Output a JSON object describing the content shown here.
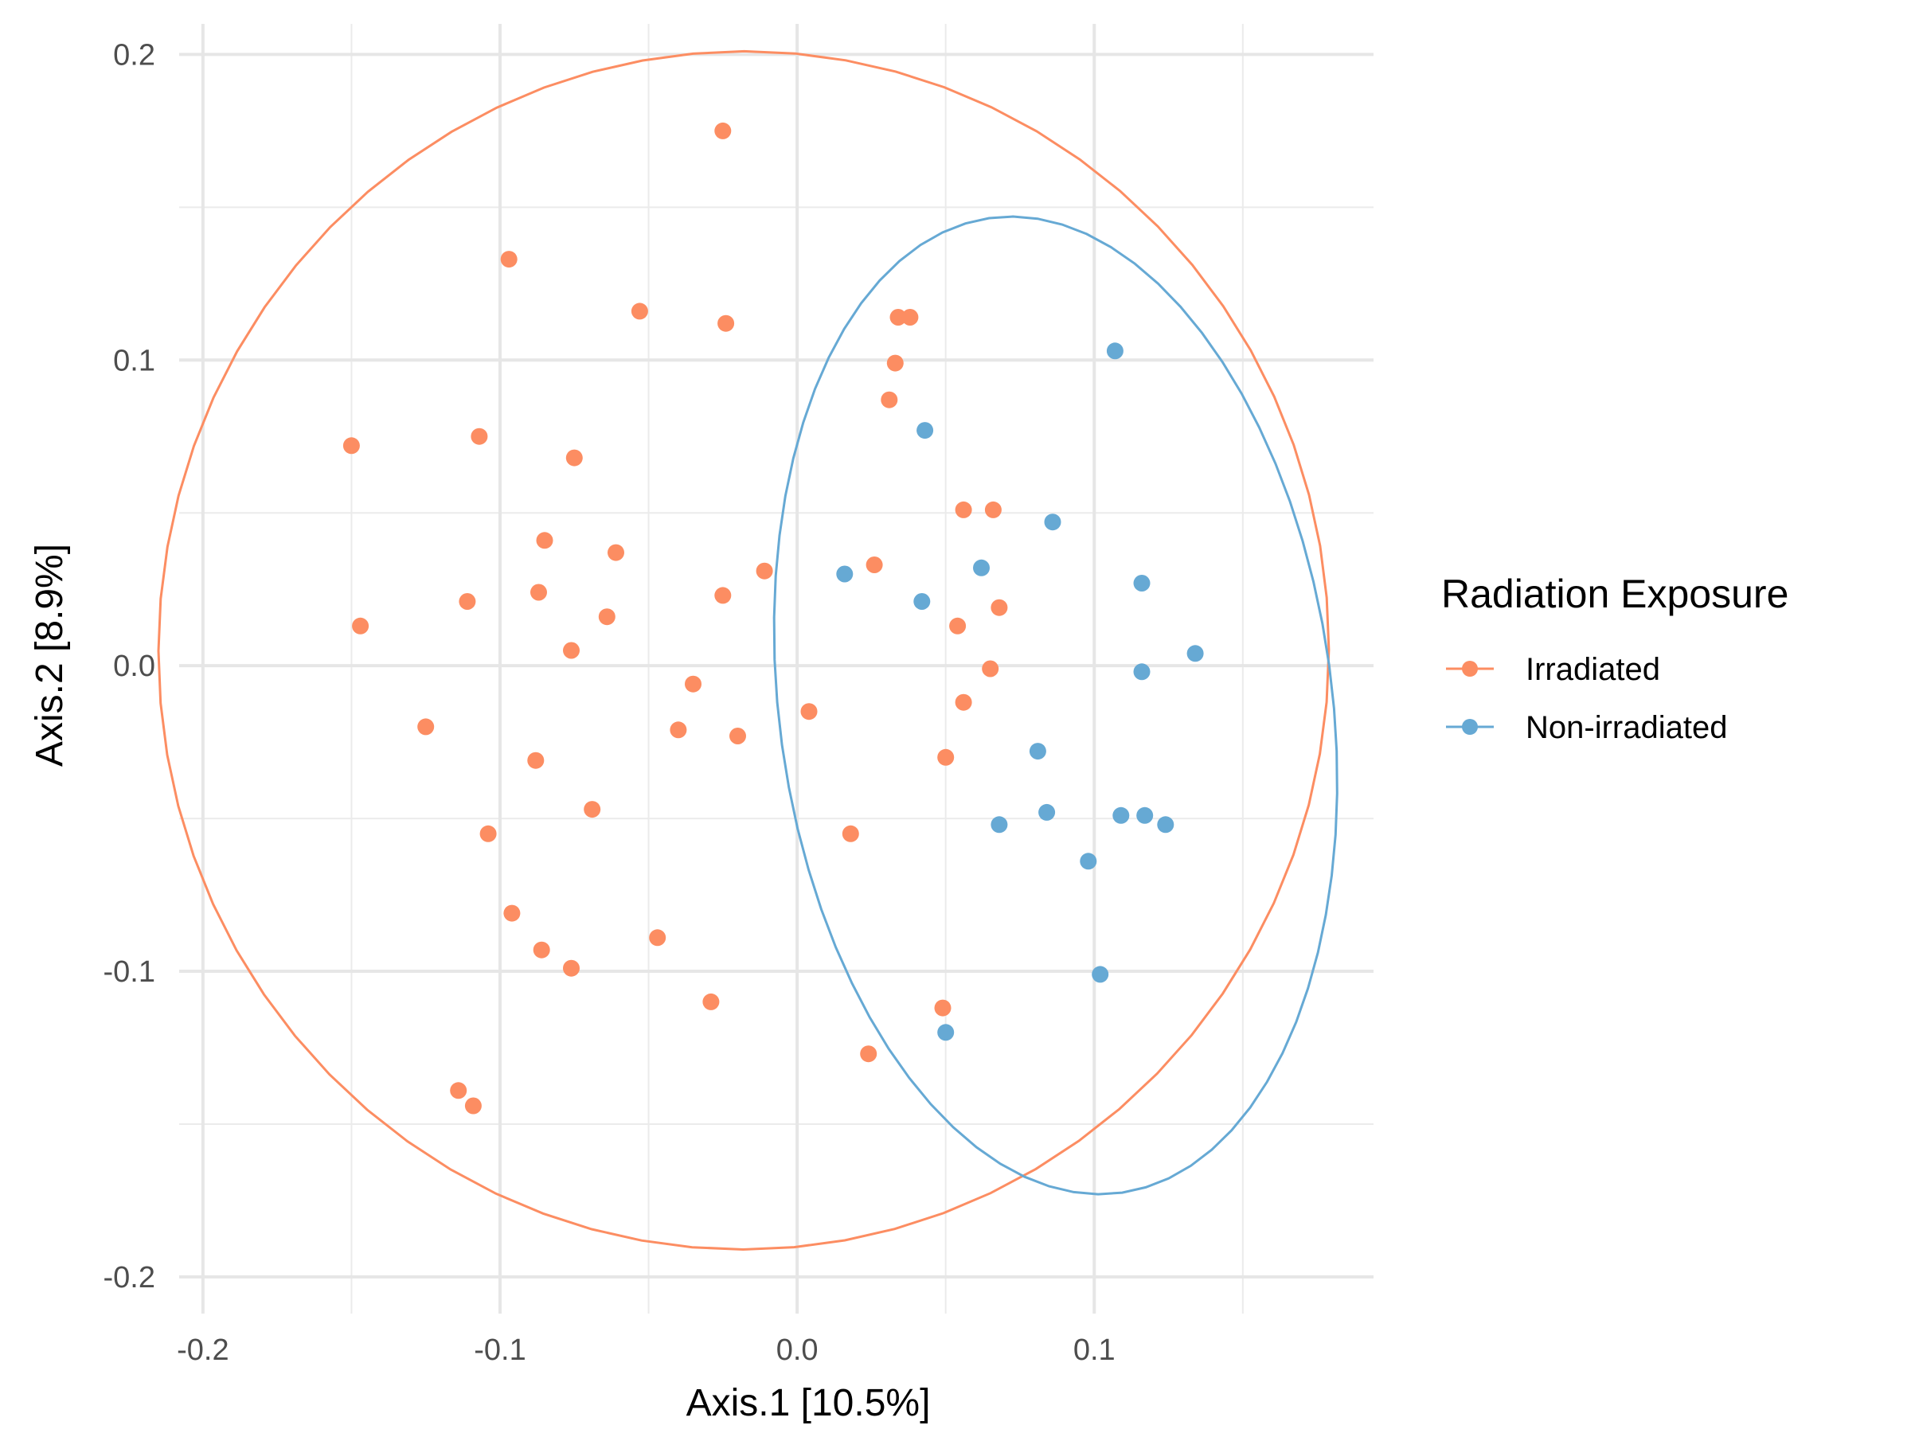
{
  "chart_data": {
    "type": "scatter",
    "title": "",
    "xlabel": "Axis.1   [10.5%]",
    "ylabel": "Axis.2   [8.9%]",
    "xlim": [
      -0.208,
      0.194
    ],
    "ylim": [
      -0.212,
      0.21
    ],
    "x_ticks": [
      -0.2,
      -0.1,
      0.0,
      0.1
    ],
    "x_tick_labels": [
      "-0.2",
      "-0.1",
      "0.0",
      "0.1"
    ],
    "y_ticks": [
      -0.2,
      -0.1,
      0.0,
      0.1,
      0.2
    ],
    "y_tick_labels": [
      "-0.2",
      "-0.1",
      "0.0",
      "0.1",
      "0.2"
    ],
    "grid": true,
    "legend": {
      "title": "Radiation Exposure",
      "position": "right"
    },
    "series": [
      {
        "name": "Irradiated",
        "color": "#FC8D62",
        "ellipse": {
          "cx": -0.018,
          "cy": 0.005,
          "rx": 0.197,
          "ry": 0.196,
          "angle_deg": 10
        },
        "points": [
          [
            -0.025,
            0.175
          ],
          [
            -0.097,
            0.133
          ],
          [
            -0.053,
            0.116
          ],
          [
            -0.024,
            0.112
          ],
          [
            0.034,
            0.114
          ],
          [
            0.038,
            0.114
          ],
          [
            0.033,
            0.099
          ],
          [
            0.031,
            0.087
          ],
          [
            -0.15,
            0.072
          ],
          [
            -0.107,
            0.075
          ],
          [
            -0.075,
            0.068
          ],
          [
            0.056,
            0.051
          ],
          [
            0.066,
            0.051
          ],
          [
            -0.085,
            0.041
          ],
          [
            -0.061,
            0.037
          ],
          [
            0.026,
            0.033
          ],
          [
            -0.011,
            0.031
          ],
          [
            -0.087,
            0.024
          ],
          [
            -0.025,
            0.023
          ],
          [
            -0.111,
            0.021
          ],
          [
            -0.064,
            0.016
          ],
          [
            0.068,
            0.019
          ],
          [
            0.054,
            0.013
          ],
          [
            -0.147,
            0.013
          ],
          [
            -0.076,
            0.005
          ],
          [
            0.065,
            -0.001
          ],
          [
            -0.035,
            -0.006
          ],
          [
            0.004,
            -0.015
          ],
          [
            0.056,
            -0.012
          ],
          [
            -0.125,
            -0.02
          ],
          [
            -0.04,
            -0.021
          ],
          [
            -0.02,
            -0.023
          ],
          [
            0.05,
            -0.03
          ],
          [
            -0.088,
            -0.031
          ],
          [
            -0.069,
            -0.047
          ],
          [
            -0.104,
            -0.055
          ],
          [
            0.018,
            -0.055
          ],
          [
            -0.096,
            -0.081
          ],
          [
            -0.047,
            -0.089
          ],
          [
            -0.086,
            -0.093
          ],
          [
            -0.076,
            -0.099
          ],
          [
            -0.029,
            -0.11
          ],
          [
            0.049,
            -0.112
          ],
          [
            0.024,
            -0.127
          ],
          [
            -0.114,
            -0.139
          ],
          [
            -0.109,
            -0.144
          ]
        ]
      },
      {
        "name": "Non-irradiated",
        "color": "#66A9D4",
        "ellipse": {
          "cx": 0.087,
          "cy": -0.013,
          "rx": 0.093,
          "ry": 0.161,
          "angle_deg": 8
        },
        "points": [
          [
            0.107,
            0.103
          ],
          [
            0.043,
            0.077
          ],
          [
            0.086,
            0.047
          ],
          [
            0.016,
            0.03
          ],
          [
            0.062,
            0.032
          ],
          [
            0.116,
            0.027
          ],
          [
            0.042,
            0.021
          ],
          [
            0.134,
            0.004
          ],
          [
            0.116,
            -0.002
          ],
          [
            0.081,
            -0.028
          ],
          [
            0.068,
            -0.052
          ],
          [
            0.084,
            -0.048
          ],
          [
            0.109,
            -0.049
          ],
          [
            0.117,
            -0.049
          ],
          [
            0.124,
            -0.052
          ],
          [
            0.098,
            -0.064
          ],
          [
            0.102,
            -0.101
          ],
          [
            0.05,
            -0.12
          ]
        ]
      }
    ]
  }
}
